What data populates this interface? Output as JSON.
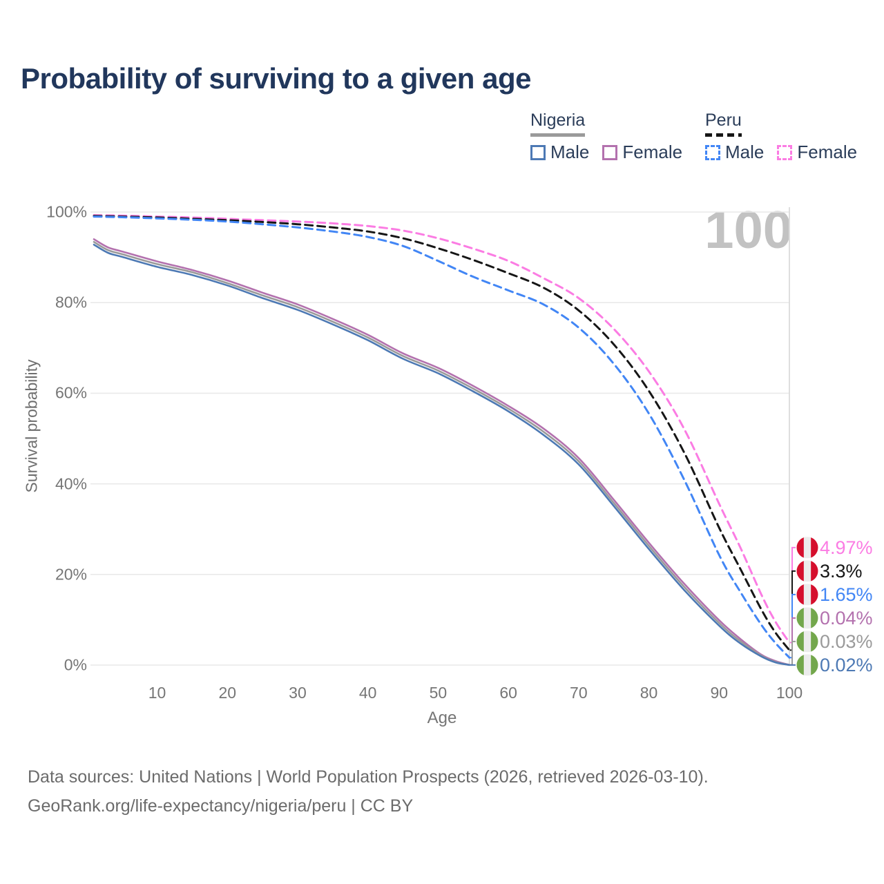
{
  "title": "Probability of surviving to a given age",
  "watermark_age": "100",
  "legend": {
    "groups": [
      {
        "id": "nigeria",
        "label": "Nigeria",
        "line_style": "solid",
        "underline_color": "#9a9a9a",
        "items": [
          {
            "id": "nigeria-male",
            "label": "Male",
            "color": "#4d79b4",
            "dashed": false
          },
          {
            "id": "nigeria-female",
            "label": "Female",
            "color": "#b371ae",
            "dashed": false
          }
        ]
      },
      {
        "id": "peru",
        "label": "Peru",
        "line_style": "dashed",
        "underline_color": "#161616",
        "items": [
          {
            "id": "peru-male",
            "label": "Male",
            "color": "#4286f5",
            "dashed": true
          },
          {
            "id": "peru-female",
            "label": "Female",
            "color": "#fb7ce3",
            "dashed": true
          }
        ]
      }
    ]
  },
  "chart_data": {
    "type": "line",
    "title": "Probability of surviving to a given age",
    "xlabel": "Age",
    "ylabel": "Survival probability",
    "xlim": [
      1,
      100
    ],
    "ylim": [
      0,
      100
    ],
    "x_ticks": [
      10,
      20,
      30,
      40,
      50,
      60,
      70,
      80,
      90,
      100
    ],
    "y_ticks": [
      {
        "value": 0,
        "label": "0%"
      },
      {
        "value": 20,
        "label": "20%"
      },
      {
        "value": 40,
        "label": "40%"
      },
      {
        "value": 60,
        "label": "60%"
      },
      {
        "value": 80,
        "label": "80%"
      },
      {
        "value": 100,
        "label": "100%"
      }
    ],
    "grid": "horizontal",
    "age_cursor": 100,
    "legend_position": "top-right",
    "flags": {
      "Peru": [
        "#d50f2d",
        "#ececec",
        "#d50f2d"
      ],
      "Nigeria": [
        "#73a74c",
        "#ececec",
        "#73a74c"
      ]
    },
    "series": [
      {
        "id": "peru-female",
        "country": "Peru",
        "sex": "Female",
        "color": "#fb7ce3",
        "dash": true,
        "end_label": "4.97%",
        "points": [
          [
            1,
            99.3
          ],
          [
            5,
            99.2
          ],
          [
            10,
            99.0
          ],
          [
            15,
            98.8
          ],
          [
            20,
            98.5
          ],
          [
            25,
            98.2
          ],
          [
            30,
            97.9
          ],
          [
            35,
            97.5
          ],
          [
            40,
            96.9
          ],
          [
            45,
            95.9
          ],
          [
            50,
            94.2
          ],
          [
            55,
            91.9
          ],
          [
            60,
            89.2
          ],
          [
            65,
            85.4
          ],
          [
            70,
            81.0
          ],
          [
            75,
            74.2
          ],
          [
            80,
            64.8
          ],
          [
            85,
            52.2
          ],
          [
            90,
            35.6
          ],
          [
            93,
            26.0
          ],
          [
            96,
            15.6
          ],
          [
            98,
            9.6
          ],
          [
            100,
            4.97
          ]
        ]
      },
      {
        "id": "peru-both",
        "country": "Peru",
        "sex": "Both",
        "color": "#161616",
        "dash": true,
        "end_label": "3.3%",
        "points": [
          [
            1,
            99.15
          ],
          [
            5,
            99.0
          ],
          [
            10,
            98.8
          ],
          [
            15,
            98.5
          ],
          [
            20,
            98.2
          ],
          [
            25,
            97.8
          ],
          [
            30,
            97.3
          ],
          [
            35,
            96.6
          ],
          [
            40,
            95.7
          ],
          [
            45,
            94.2
          ],
          [
            50,
            92.0
          ],
          [
            55,
            89.4
          ],
          [
            60,
            86.5
          ],
          [
            65,
            83.3
          ],
          [
            70,
            78.3
          ],
          [
            75,
            70.8
          ],
          [
            80,
            60.5
          ],
          [
            85,
            47.0
          ],
          [
            90,
            30.3
          ],
          [
            93,
            21.3
          ],
          [
            96,
            12.3
          ],
          [
            98,
            7.2
          ],
          [
            100,
            3.3
          ]
        ]
      },
      {
        "id": "peru-male",
        "country": "Peru",
        "sex": "Male",
        "color": "#4286f5",
        "dash": true,
        "end_label": "1.65%",
        "points": [
          [
            1,
            99.0
          ],
          [
            5,
            98.85
          ],
          [
            10,
            98.6
          ],
          [
            15,
            98.3
          ],
          [
            20,
            97.9
          ],
          [
            25,
            97.3
          ],
          [
            30,
            96.6
          ],
          [
            35,
            95.7
          ],
          [
            40,
            94.5
          ],
          [
            45,
            92.5
          ],
          [
            50,
            89.2
          ],
          [
            55,
            85.7
          ],
          [
            60,
            82.7
          ],
          [
            65,
            79.6
          ],
          [
            70,
            74.5
          ],
          [
            75,
            66.5
          ],
          [
            80,
            55.5
          ],
          [
            85,
            41.0
          ],
          [
            90,
            24.3
          ],
          [
            93,
            16.2
          ],
          [
            96,
            8.9
          ],
          [
            98,
            4.9
          ],
          [
            100,
            1.65
          ]
        ]
      },
      {
        "id": "nigeria-female",
        "country": "Nigeria",
        "sex": "Female",
        "color": "#b371ae",
        "dash": false,
        "end_label": "0.04%",
        "points": [
          [
            1,
            94.0
          ],
          [
            3,
            92.2
          ],
          [
            5,
            91.3
          ],
          [
            10,
            89.1
          ],
          [
            15,
            87.2
          ],
          [
            20,
            84.9
          ],
          [
            25,
            82.2
          ],
          [
            30,
            79.6
          ],
          [
            35,
            76.4
          ],
          [
            40,
            72.9
          ],
          [
            45,
            68.8
          ],
          [
            50,
            65.6
          ],
          [
            55,
            61.6
          ],
          [
            60,
            57.2
          ],
          [
            65,
            52.2
          ],
          [
            70,
            45.7
          ],
          [
            75,
            36.5
          ],
          [
            80,
            27.0
          ],
          [
            85,
            18.0
          ],
          [
            90,
            9.9
          ],
          [
            93,
            5.8
          ],
          [
            96,
            2.3
          ],
          [
            98,
            0.9
          ],
          [
            100,
            0.04
          ]
        ]
      },
      {
        "id": "nigeria-both",
        "country": "Nigeria",
        "sex": "Both",
        "color": "#9a9a9a",
        "dash": false,
        "end_label": "0.03%",
        "points": [
          [
            1,
            93.4
          ],
          [
            3,
            91.6
          ],
          [
            5,
            90.7
          ],
          [
            10,
            88.5
          ],
          [
            15,
            86.7
          ],
          [
            20,
            84.3
          ],
          [
            25,
            81.6
          ],
          [
            30,
            79.0
          ],
          [
            35,
            75.8
          ],
          [
            40,
            72.3
          ],
          [
            45,
            68.2
          ],
          [
            50,
            65.0
          ],
          [
            55,
            61.0
          ],
          [
            60,
            56.6
          ],
          [
            65,
            51.5
          ],
          [
            70,
            45.0
          ],
          [
            75,
            35.8
          ],
          [
            80,
            26.3
          ],
          [
            85,
            17.3
          ],
          [
            90,
            9.3
          ],
          [
            93,
            5.3
          ],
          [
            96,
            2.1
          ],
          [
            98,
            0.7
          ],
          [
            100,
            0.03
          ]
        ]
      },
      {
        "id": "nigeria-male",
        "country": "Nigeria",
        "sex": "Male",
        "color": "#4d79b4",
        "dash": false,
        "end_label": "0.02%",
        "points": [
          [
            1,
            92.8
          ],
          [
            3,
            91.0
          ],
          [
            5,
            90.1
          ],
          [
            10,
            87.9
          ],
          [
            15,
            86.1
          ],
          [
            20,
            83.8
          ],
          [
            25,
            81.0
          ],
          [
            30,
            78.4
          ],
          [
            35,
            75.2
          ],
          [
            40,
            71.7
          ],
          [
            45,
            67.6
          ],
          [
            50,
            64.4
          ],
          [
            55,
            60.4
          ],
          [
            60,
            56.0
          ],
          [
            65,
            50.8
          ],
          [
            70,
            44.3
          ],
          [
            75,
            35.1
          ],
          [
            80,
            25.6
          ],
          [
            85,
            16.6
          ],
          [
            90,
            8.7
          ],
          [
            93,
            4.8
          ],
          [
            96,
            1.9
          ],
          [
            98,
            0.6
          ],
          [
            100,
            0.02
          ]
        ]
      }
    ]
  },
  "footer": {
    "line1": "Data sources: United Nations | World Population Prospects (2026, retrieved 2026-03-10).",
    "line2": "GeoRank.org/life-expectancy/nigeria/peru | CC BY"
  }
}
